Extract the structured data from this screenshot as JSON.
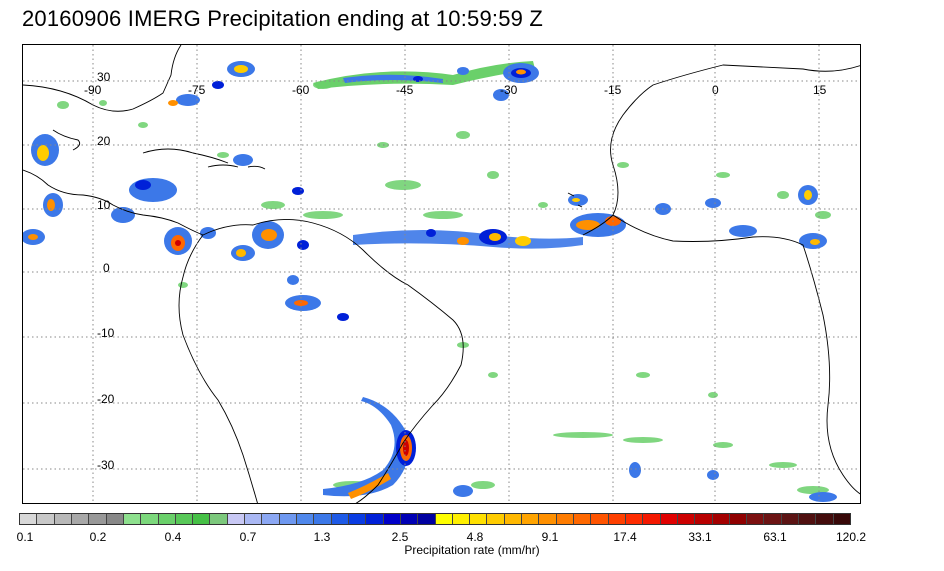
{
  "title": "20160906 IMERG Precipitation ending at 10:59:59 Z",
  "map": {
    "lon_labels": [
      "-90",
      "-75",
      "-60",
      "-45",
      "-30",
      "-15",
      "0",
      "15"
    ],
    "lat_labels": [
      "30",
      "20",
      "10",
      "0",
      "-10",
      "-20",
      "-30"
    ],
    "grid_line_color": "#888888",
    "coastline_color": "#000000"
  },
  "colorbar": {
    "label": "Precipitation rate (mm/hr)",
    "tick_labels": [
      "0.1",
      "0.2",
      "0.4",
      "0.7",
      "1.3",
      "2.5",
      "4.8",
      "9.1",
      "17.4",
      "33.1",
      "63.1",
      "120.2"
    ],
    "colors": [
      "#d8d8d8",
      "#c8c8c8",
      "#b8b8b8",
      "#a8a8a8",
      "#989898",
      "#888888",
      "#8ee08e",
      "#7cd87c",
      "#6ad06a",
      "#58c858",
      "#46c046",
      "#7cc87c",
      "#c8c8f4",
      "#aab8f4",
      "#8ca8f4",
      "#6e98f0",
      "#5088ec",
      "#3c78e8",
      "#1e5ae6",
      "#0a3ce2",
      "#0020d8",
      "#0000c8",
      "#0000b4",
      "#0000a0",
      "#ffff00",
      "#fff000",
      "#ffe000",
      "#ffcc00",
      "#ffb800",
      "#ffa400",
      "#ff9000",
      "#ff7c00",
      "#ff6800",
      "#ff5400",
      "#ff4000",
      "#ff2c00",
      "#f41800",
      "#e00000",
      "#cc0000",
      "#b80000",
      "#a40000",
      "#900000",
      "#7c1010",
      "#6c1414",
      "#5c1414",
      "#501010",
      "#440c0c",
      "#380808"
    ]
  }
}
